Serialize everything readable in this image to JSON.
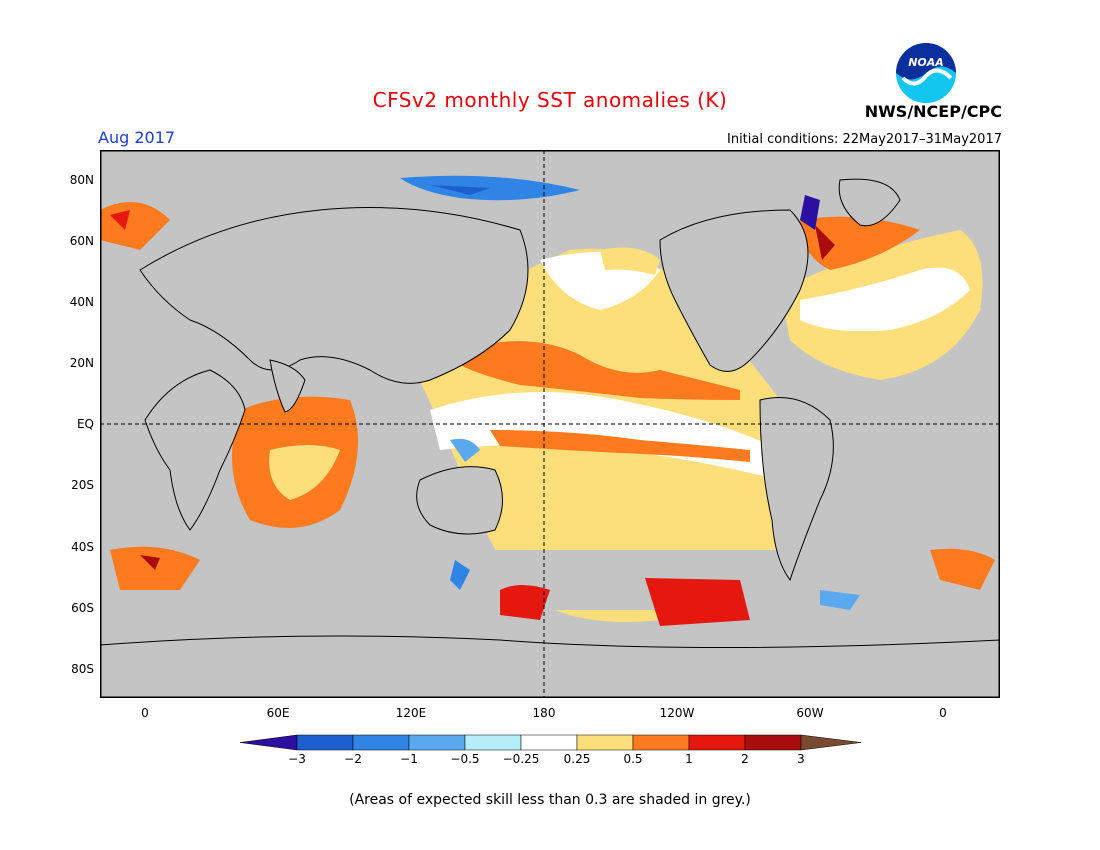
{
  "title": "CFSv2 monthly SST anomalies (K)",
  "valid_month": "Aug 2017",
  "agency": "NWS/NCEP/CPC",
  "logo_text": "NOAA",
  "initial_conditions": "Initial conditions: 22May2017–31May2017",
  "lat_labels": [
    "80N",
    "60N",
    "40N",
    "20N",
    "EQ",
    "20S",
    "40S",
    "60S",
    "80S"
  ],
  "lon_labels": [
    "0",
    "60E",
    "120E",
    "180",
    "120W",
    "60W",
    "0"
  ],
  "colorbar": {
    "labels": [
      "−3",
      "−2",
      "−1",
      "−0.5",
      "−0.25",
      "0.25",
      "0.5",
      "1",
      "2",
      "3"
    ],
    "colors": [
      "#2a0fa0",
      "#1d5fd0",
      "#2f84e6",
      "#5aa8ee",
      "#b4edf6",
      "#ffffff",
      "#fcdf7a",
      "#fd7a1e",
      "#e4180e",
      "#a80c0c",
      "#7a4a30"
    ]
  },
  "footnote": "(Areas of expected skill less than 0.3 are shaded in grey.)",
  "colors": {
    "title": "#e8000b",
    "valid_month": "#1f3bd6",
    "land": "#ffffff",
    "low_skill": "#c4c4c4"
  }
}
